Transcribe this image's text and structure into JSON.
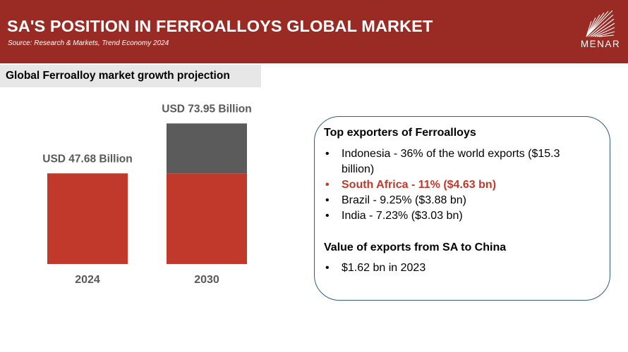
{
  "header": {
    "title": "SA'S POSITION IN FERROALLOYS GLOBAL MARKET",
    "source": "Source: Research & Markets,  Trend Economy  2024",
    "logo_text": "MENAR"
  },
  "subheading": "Global Ferroalloy market growth projection",
  "chart_data": {
    "type": "bar",
    "title": "Global Ferroalloy market growth projection",
    "categories": [
      "2024",
      "2030"
    ],
    "values": [
      47.68,
      73.95
    ],
    "data_labels": [
      "USD 47.68 Billion",
      "USD 73.95 Billion"
    ],
    "unit": "USD Billion",
    "ylim": [
      0,
      80
    ],
    "grid": false,
    "colors": {
      "base": "#c0392b",
      "growth": "#5b5b5b"
    }
  },
  "info": {
    "exporters_heading": "Top exporters of Ferroalloys",
    "exporters": [
      {
        "text": "Indonesia - 36% of the world exports ($15.3 billion)",
        "highlight": false
      },
      {
        "text": "South Africa - 11% ($4.63 bn)",
        "highlight": true
      },
      {
        "text": "Brazil - 9.25% ($3.88 bn)",
        "highlight": false
      },
      {
        "text": "India - 7.23% ($3.03 bn)",
        "highlight": false
      }
    ],
    "china_heading": "Value of exports from SA to China",
    "china_items": [
      {
        "text": "$1.62 bn in 2023"
      }
    ]
  },
  "colors": {
    "brand": "#992b24",
    "accent": "#c0392b",
    "box_border": "#2f5d7c",
    "subheading_bg": "#e7e7e7"
  }
}
